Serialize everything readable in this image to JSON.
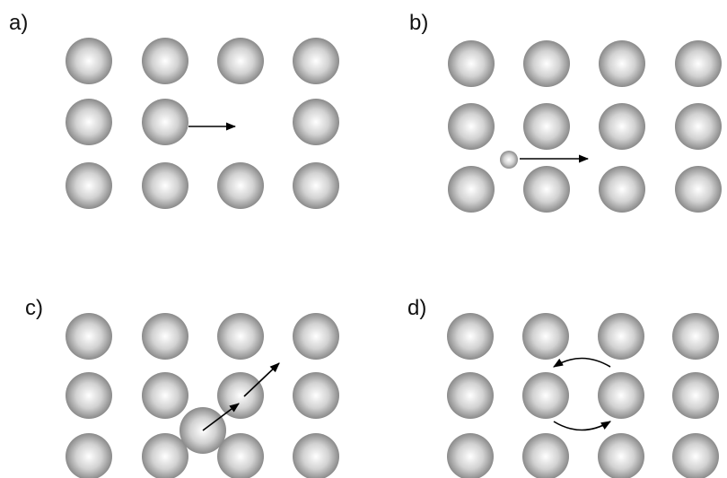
{
  "panels": [
    {
      "id": "a",
      "label": "a)",
      "mechanism": "vacancy"
    },
    {
      "id": "b",
      "label": "b)",
      "mechanism": "interstitial"
    },
    {
      "id": "c",
      "label": "c)",
      "mechanism": "interstitialcy"
    },
    {
      "id": "d",
      "label": "d)",
      "mechanism": "exchange"
    }
  ],
  "colors": {
    "atom_center": "#ffffff",
    "atom_edge": "#8a8a8a",
    "arrow": "#000000",
    "background": "#ffffff"
  }
}
